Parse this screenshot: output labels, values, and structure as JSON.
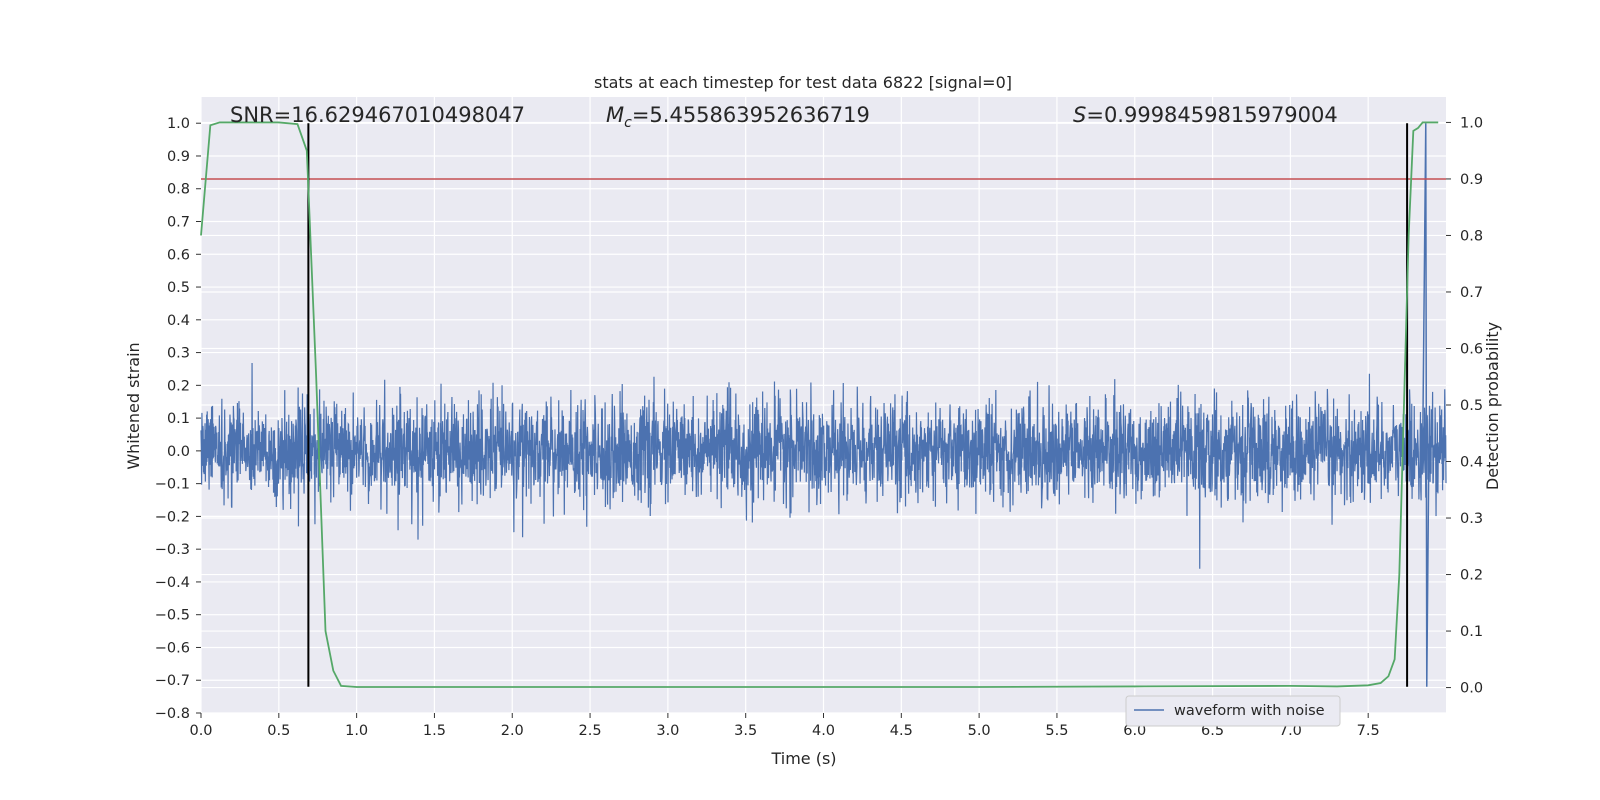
{
  "chart_data": {
    "type": "line",
    "title": "stats at each timestep for test data 6822 [signal=0]",
    "xlabel": "Time (s)",
    "ylabel_left": "Whitened strain",
    "ylabel_right": "Detection probability",
    "xlim": [
      0.0,
      8.0
    ],
    "ylim_left": [
      -0.8,
      1.08
    ],
    "ylim_right": [
      -0.045,
      1.045
    ],
    "grid": true,
    "legend_position": "lower-right",
    "colors": {
      "background": "#eaeaf2",
      "grid": "#ffffff",
      "waveform": "#4c72b0",
      "probability": "#55a868",
      "threshold": "#c44e52",
      "marker": "#000000"
    },
    "x_ticks": [
      "0.0",
      "0.5",
      "1.0",
      "1.5",
      "2.0",
      "2.5",
      "3.0",
      "3.5",
      "4.0",
      "4.5",
      "5.0",
      "5.5",
      "6.0",
      "6.5",
      "7.0",
      "7.5"
    ],
    "y_left_ticks": [
      "1.0",
      "0.9",
      "0.8",
      "0.7",
      "0.6",
      "0.5",
      "0.4",
      "0.3",
      "0.2",
      "0.1",
      "0.0",
      "−0.1",
      "−0.2",
      "−0.3",
      "−0.4",
      "−0.5",
      "−0.6",
      "−0.7",
      "−0.8"
    ],
    "y_right_ticks": [
      "1.0",
      "0.9",
      "0.8",
      "0.7",
      "0.6",
      "0.5",
      "0.4",
      "0.3",
      "0.2",
      "0.1",
      "0.0"
    ],
    "annotations": {
      "snr": "SNR=16.629467010498047",
      "mc_symbol": "M",
      "mc_subscript": "c",
      "mc_value": "=5.455863952636719",
      "s_symbol": "S",
      "s_value": "=0.9998459815979004"
    },
    "series": [
      {
        "name": "waveform with noise",
        "axis": "left",
        "description_values": "whitened strain noise, mostly within ±0.2, peaks near ±0.37, spike to 1.0 at 7.87 s",
        "envelope_typical": 0.14,
        "noise_peak": 0.37,
        "spike": {
          "x": 7.87,
          "y": 1.0,
          "y_min": -0.72
        }
      },
      {
        "name": "",
        "axis": "right",
        "x": [
          0.0,
          0.06,
          0.12,
          0.3,
          0.5,
          0.62,
          0.68,
          0.74,
          0.8,
          0.85,
          0.9,
          1.0,
          2.0,
          3.0,
          4.0,
          5.0,
          6.0,
          7.0,
          7.3,
          7.5,
          7.58,
          7.63,
          7.67,
          7.7,
          7.73,
          7.76,
          7.79,
          7.82,
          7.85,
          7.9,
          7.95
        ],
        "y": [
          0.8,
          0.995,
          1.0,
          1.0,
          1.0,
          0.997,
          0.95,
          0.55,
          0.1,
          0.03,
          0.003,
          0.001,
          0.001,
          0.001,
          0.001,
          0.001,
          0.002,
          0.003,
          0.002,
          0.004,
          0.008,
          0.02,
          0.05,
          0.2,
          0.5,
          0.8,
          0.985,
          0.99,
          1.0,
          1.0,
          1.0
        ]
      }
    ],
    "threshold": {
      "axis": "right",
      "y": 0.9
    },
    "vertical_markers": [
      {
        "x": 0.69,
        "y_from": -0.72,
        "y_to": 1.0
      },
      {
        "x": 7.75,
        "y_from": -0.72,
        "y_to": 1.0
      }
    ],
    "legend": [
      "waveform with noise"
    ]
  }
}
